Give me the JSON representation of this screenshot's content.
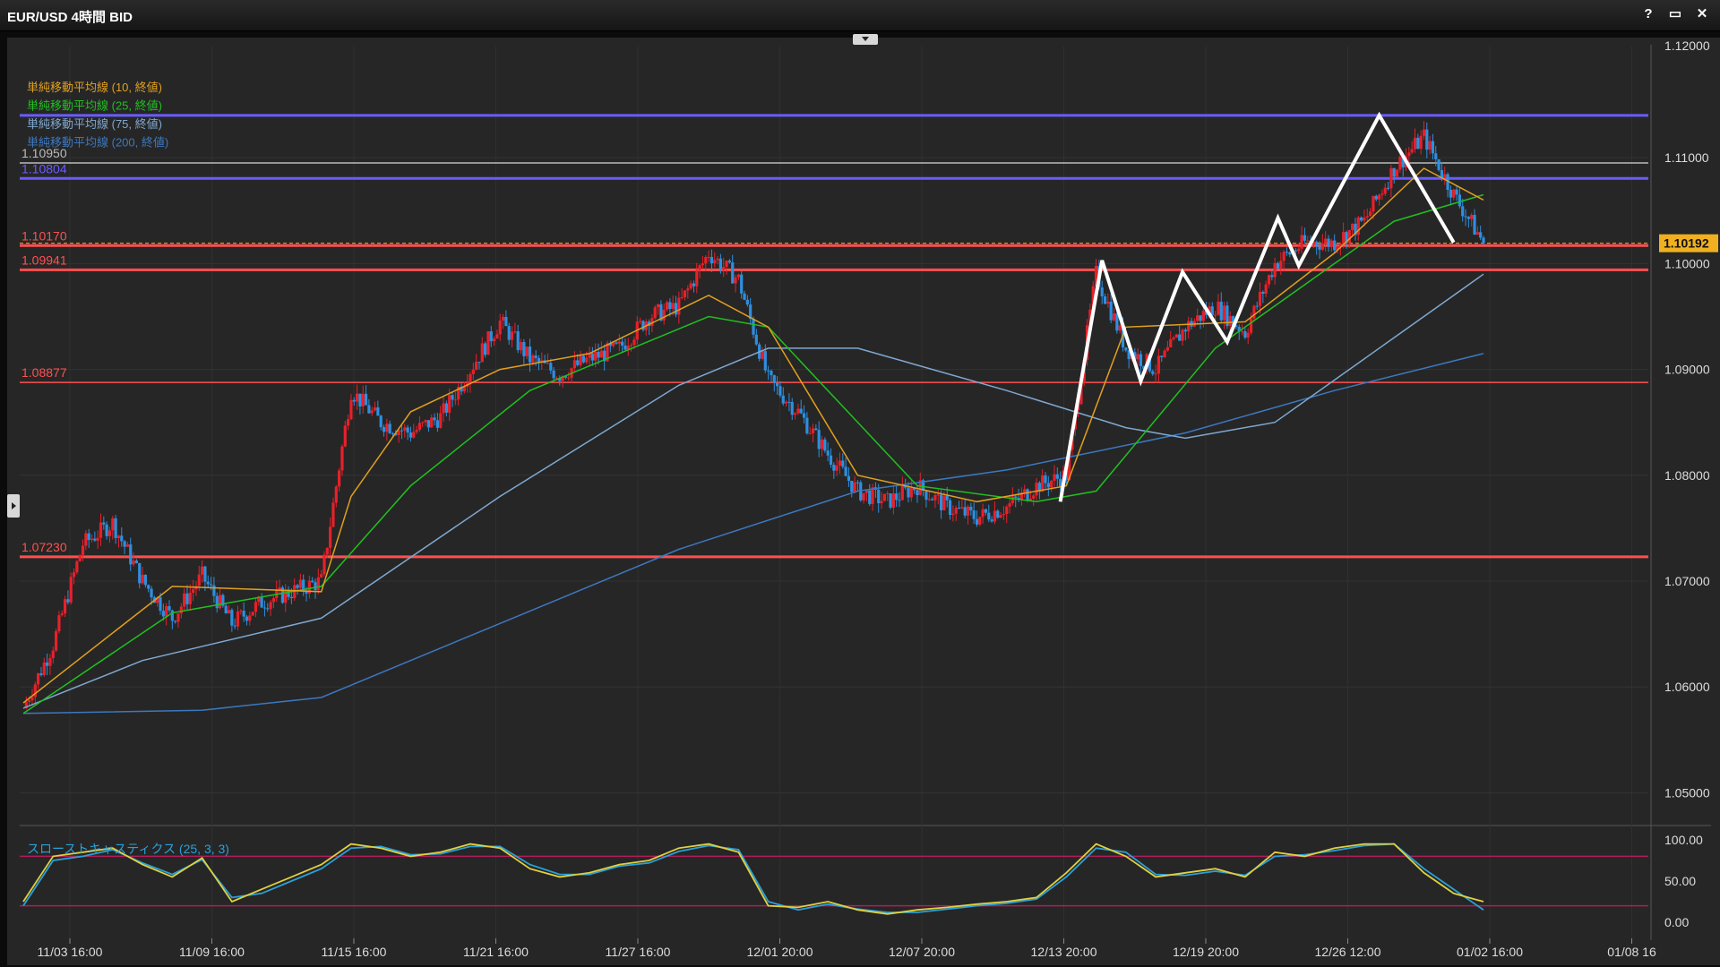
{
  "window": {
    "title": "EUR/USD 4時間 BID",
    "buttons": [
      "?",
      "▭",
      "✕"
    ]
  },
  "colors": {
    "background": "#262626",
    "up": "#e8202a",
    "down": "#2d8fe0",
    "sma10": "#e0a020",
    "sma25": "#20c020",
    "sma75": "#7fa8d0",
    "sma200": "#3c78c0",
    "stoch_k": "#e0d040",
    "stoch_d": "#2aa0d8",
    "stoch_level": "#b01e5a",
    "resistance": "#6a5cff",
    "support": "#ff5050",
    "current": "#f0b020"
  },
  "chart_data": {
    "type": "candlestick",
    "symbol": "EUR/USD",
    "timeframe": "4時間",
    "ylim": [
      1.0475,
      1.1205
    ],
    "y_ticks": [
      "1.05000",
      "1.06000",
      "1.07000",
      "1.08000",
      "1.09000",
      "1.10000",
      "1.11000"
    ],
    "top_tick_partial": "1.12000",
    "x_ticks": [
      "11/03 16:00",
      "11/09 16:00",
      "11/15 16:00",
      "11/21 16:00",
      "11/27 16:00",
      "12/01 20:00",
      "12/07 20:00",
      "12/13 20:00",
      "12/19 20:00",
      "12/26 12:00",
      "01/02 16:00",
      "01/08 16"
    ],
    "current_price": "1.10192",
    "horizontal_lines": [
      {
        "label": "1.10950",
        "value": 1.1095,
        "kind": "gray"
      },
      {
        "label": "1.10804",
        "value": 1.10804,
        "kind": "resistance"
      },
      {
        "label": "1.10170",
        "value": 1.1017,
        "kind": "support"
      },
      {
        "label": "1.09941",
        "value": 1.09941,
        "kind": "support"
      },
      {
        "label": "1.08877",
        "value": 1.08877,
        "kind": "support"
      },
      {
        "label": "1.07230",
        "value": 1.0723,
        "kind": "support"
      }
    ],
    "top_resistance": 1.114,
    "indicator_legend": [
      {
        "name": "単純移動平均線 (10, 終値)",
        "color": "#e0a020"
      },
      {
        "name": "単純移動平均線 (25, 終値)",
        "color": "#20c020"
      },
      {
        "name": "単純移動平均線 (75, 終値)",
        "color": "#7fa8d0"
      },
      {
        "name": "単純移動平均線 (200, 終値)",
        "color": "#3c78c0"
      }
    ],
    "price_path": [
      [
        0,
        1.058
      ],
      [
        10,
        1.064
      ],
      [
        20,
        1.0735
      ],
      [
        30,
        1.0755
      ],
      [
        40,
        1.07
      ],
      [
        50,
        1.0665
      ],
      [
        60,
        1.0705
      ],
      [
        70,
        1.066
      ],
      [
        80,
        1.068
      ],
      [
        90,
        1.069
      ],
      [
        100,
        1.07
      ],
      [
        110,
        1.088
      ],
      [
        120,
        1.085
      ],
      [
        130,
        1.084
      ],
      [
        140,
        1.0855
      ],
      [
        150,
        1.09
      ],
      [
        160,
        1.0945
      ],
      [
        170,
        1.091
      ],
      [
        180,
        1.0895
      ],
      [
        190,
        1.091
      ],
      [
        200,
        1.092
      ],
      [
        210,
        1.095
      ],
      [
        220,
        1.096
      ],
      [
        230,
        1.101
      ],
      [
        240,
        1.0985
      ],
      [
        250,
        1.089
      ],
      [
        260,
        1.086
      ],
      [
        270,
        1.082
      ],
      [
        280,
        1.0785
      ],
      [
        290,
        1.0775
      ],
      [
        300,
        1.079
      ],
      [
        310,
        1.077
      ],
      [
        320,
        1.076
      ],
      [
        330,
        1.077
      ],
      [
        340,
        1.079
      ],
      [
        350,
        1.08
      ],
      [
        360,
        1.099
      ],
      [
        370,
        1.092
      ],
      [
        380,
        1.09
      ],
      [
        390,
        1.094
      ],
      [
        400,
        1.096
      ],
      [
        410,
        1.0935
      ],
      [
        420,
        1.1
      ],
      [
        430,
        1.102
      ],
      [
        440,
        1.102
      ],
      [
        450,
        1.104
      ],
      [
        460,
        1.109
      ],
      [
        470,
        1.112
      ],
      [
        480,
        1.1065
      ],
      [
        490,
        1.102
      ]
    ],
    "sma10": [
      [
        0,
        1.0585
      ],
      [
        50,
        1.0695
      ],
      [
        100,
        1.069
      ],
      [
        110,
        1.078
      ],
      [
        130,
        1.086
      ],
      [
        160,
        1.09
      ],
      [
        190,
        1.0915
      ],
      [
        230,
        1.097
      ],
      [
        250,
        1.094
      ],
      [
        280,
        1.08
      ],
      [
        320,
        1.0775
      ],
      [
        350,
        1.079
      ],
      [
        370,
        1.094
      ],
      [
        410,
        1.0945
      ],
      [
        440,
        1.101
      ],
      [
        470,
        1.109
      ],
      [
        490,
        1.106
      ]
    ],
    "sma25": [
      [
        0,
        1.0575
      ],
      [
        50,
        1.067
      ],
      [
        100,
        1.0695
      ],
      [
        130,
        1.079
      ],
      [
        170,
        1.088
      ],
      [
        230,
        1.095
      ],
      [
        250,
        1.094
      ],
      [
        300,
        1.079
      ],
      [
        340,
        1.0775
      ],
      [
        360,
        1.0785
      ],
      [
        400,
        1.092
      ],
      [
        430,
        1.098
      ],
      [
        460,
        1.104
      ],
      [
        490,
        1.1065
      ]
    ],
    "sma75": [
      [
        0,
        1.058
      ],
      [
        40,
        1.0625
      ],
      [
        100,
        1.0665
      ],
      [
        160,
        1.078
      ],
      [
        220,
        1.0885
      ],
      [
        250,
        1.092
      ],
      [
        280,
        1.092
      ],
      [
        330,
        1.088
      ],
      [
        370,
        1.0845
      ],
      [
        390,
        1.0835
      ],
      [
        420,
        1.085
      ],
      [
        460,
        1.093
      ],
      [
        490,
        1.099
      ]
    ],
    "sma200": [
      [
        0,
        1.0575
      ],
      [
        60,
        1.0578
      ],
      [
        100,
        1.059
      ],
      [
        160,
        1.066
      ],
      [
        220,
        1.073
      ],
      [
        280,
        1.0785
      ],
      [
        330,
        1.0805
      ],
      [
        390,
        1.084
      ],
      [
        440,
        1.088
      ],
      [
        490,
        1.0915
      ]
    ],
    "zigzag": [
      [
        348,
        1.0775
      ],
      [
        362,
        1.1003
      ],
      [
        375,
        1.0889
      ],
      [
        389,
        1.0992
      ],
      [
        404,
        1.0926
      ],
      [
        421,
        1.1043
      ],
      [
        428,
        1.0998
      ],
      [
        455,
        1.114
      ],
      [
        480,
        1.102
      ]
    ],
    "stochastic": {
      "label": "スローストキャスティクス (25, 3, 3)",
      "ylim": [
        0,
        100
      ],
      "y_ticks": [
        "100.00",
        "50.00",
        "0.00"
      ],
      "levels": [
        80,
        20
      ],
      "k": [
        [
          0,
          25
        ],
        [
          10,
          80
        ],
        [
          20,
          85
        ],
        [
          30,
          90
        ],
        [
          40,
          70
        ],
        [
          50,
          55
        ],
        [
          60,
          78
        ],
        [
          70,
          25
        ],
        [
          80,
          40
        ],
        [
          90,
          55
        ],
        [
          100,
          70
        ],
        [
          110,
          95
        ],
        [
          120,
          90
        ],
        [
          130,
          80
        ],
        [
          140,
          85
        ],
        [
          150,
          95
        ],
        [
          160,
          90
        ],
        [
          170,
          65
        ],
        [
          180,
          55
        ],
        [
          190,
          60
        ],
        [
          200,
          70
        ],
        [
          210,
          75
        ],
        [
          220,
          90
        ],
        [
          230,
          95
        ],
        [
          240,
          85
        ],
        [
          250,
          20
        ],
        [
          260,
          18
        ],
        [
          270,
          25
        ],
        [
          280,
          15
        ],
        [
          290,
          10
        ],
        [
          300,
          15
        ],
        [
          310,
          18
        ],
        [
          320,
          22
        ],
        [
          330,
          25
        ],
        [
          340,
          30
        ],
        [
          350,
          60
        ],
        [
          360,
          95
        ],
        [
          370,
          80
        ],
        [
          380,
          55
        ],
        [
          390,
          60
        ],
        [
          400,
          65
        ],
        [
          410,
          55
        ],
        [
          420,
          85
        ],
        [
          430,
          80
        ],
        [
          440,
          90
        ],
        [
          450,
          95
        ],
        [
          460,
          95
        ],
        [
          470,
          60
        ],
        [
          480,
          35
        ],
        [
          490,
          25
        ]
      ],
      "d": [
        [
          0,
          20
        ],
        [
          10,
          75
        ],
        [
          20,
          80
        ],
        [
          30,
          88
        ],
        [
          40,
          72
        ],
        [
          50,
          58
        ],
        [
          60,
          76
        ],
        [
          70,
          30
        ],
        [
          80,
          35
        ],
        [
          90,
          50
        ],
        [
          100,
          65
        ],
        [
          110,
          90
        ],
        [
          120,
          92
        ],
        [
          130,
          82
        ],
        [
          140,
          83
        ],
        [
          150,
          92
        ],
        [
          160,
          92
        ],
        [
          170,
          70
        ],
        [
          180,
          58
        ],
        [
          190,
          58
        ],
        [
          200,
          68
        ],
        [
          210,
          72
        ],
        [
          220,
          86
        ],
        [
          230,
          93
        ],
        [
          240,
          88
        ],
        [
          250,
          25
        ],
        [
          260,
          15
        ],
        [
          270,
          22
        ],
        [
          280,
          16
        ],
        [
          290,
          12
        ],
        [
          300,
          12
        ],
        [
          310,
          16
        ],
        [
          320,
          20
        ],
        [
          330,
          23
        ],
        [
          340,
          28
        ],
        [
          350,
          55
        ],
        [
          360,
          90
        ],
        [
          370,
          85
        ],
        [
          380,
          58
        ],
        [
          390,
          57
        ],
        [
          400,
          62
        ],
        [
          410,
          57
        ],
        [
          420,
          80
        ],
        [
          430,
          82
        ],
        [
          440,
          87
        ],
        [
          450,
          93
        ],
        [
          460,
          95
        ],
        [
          470,
          65
        ],
        [
          480,
          40
        ],
        [
          490,
          15
        ]
      ]
    }
  }
}
